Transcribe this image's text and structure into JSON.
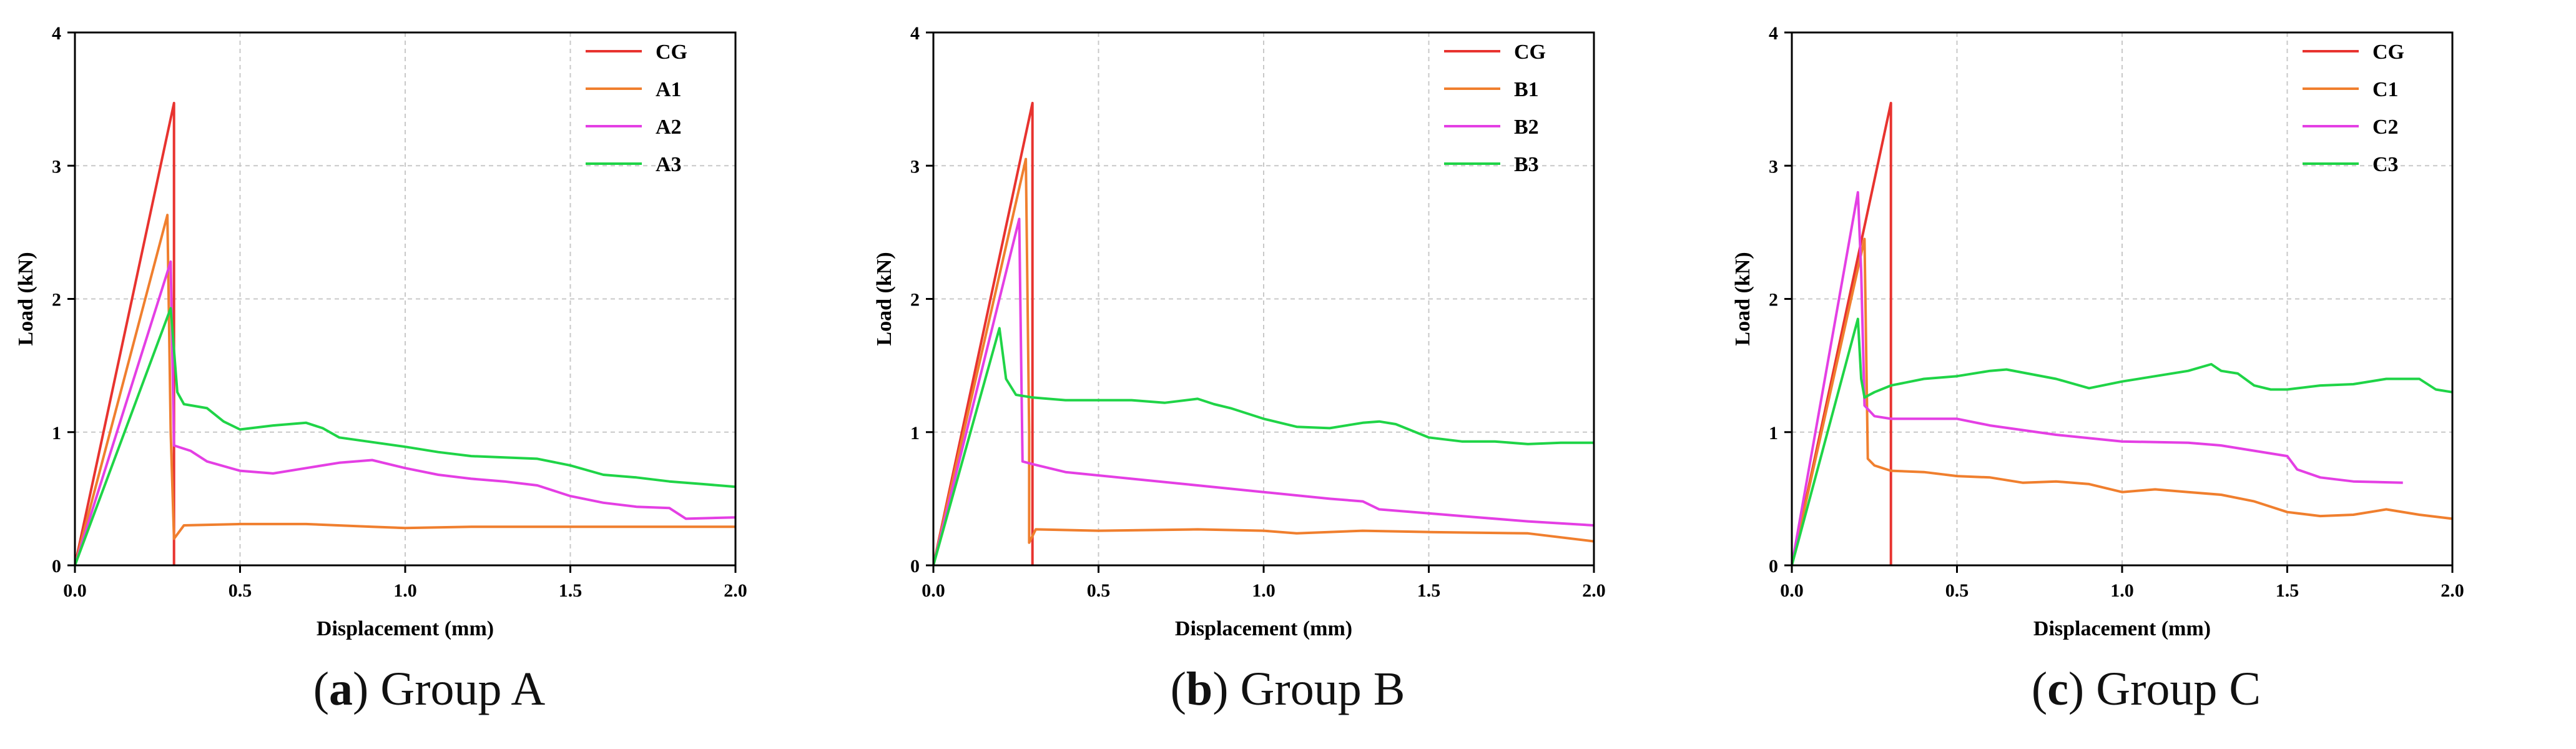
{
  "colors": {
    "CG": "#e8332f",
    "s1": "#f07f2e",
    "s2": "#e43fe4",
    "s3": "#1fd447",
    "axis": "#000000",
    "grid": "#c8c8c8"
  },
  "chart_data": [
    {
      "type": "line",
      "caption": {
        "letter": "a",
        "text": "Group A"
      },
      "xlabel": "Displacement (mm)",
      "ylabel": "Load (kN)",
      "xlim": [
        0,
        2.0
      ],
      "ylim": [
        0,
        4
      ],
      "xticks": [
        "0.0",
        "0.5",
        "1.0",
        "1.5",
        "2.0"
      ],
      "yticks": [
        "0",
        "1",
        "2",
        "3",
        "4"
      ],
      "grid": true,
      "legend": "top-right",
      "series": [
        {
          "name": "CG",
          "color_key": "CG",
          "points": [
            [
              0,
              0
            ],
            [
              0.3,
              3.47
            ],
            [
              0.3,
              0
            ]
          ]
        },
        {
          "name": "A1",
          "color_key": "s1",
          "points": [
            [
              0,
              0
            ],
            [
              0.28,
              2.63
            ],
            [
              0.29,
              1.0
            ],
            [
              0.3,
              0.2
            ],
            [
              0.33,
              0.3
            ],
            [
              0.5,
              0.31
            ],
            [
              0.7,
              0.31
            ],
            [
              0.9,
              0.29
            ],
            [
              1.0,
              0.28
            ],
            [
              1.2,
              0.29
            ],
            [
              1.5,
              0.29
            ],
            [
              1.8,
              0.29
            ],
            [
              2.0,
              0.29
            ]
          ]
        },
        {
          "name": "A2",
          "color_key": "s2",
          "points": [
            [
              0,
              0
            ],
            [
              0.29,
              2.28
            ],
            [
              0.3,
              0.9
            ],
            [
              0.35,
              0.86
            ],
            [
              0.4,
              0.78
            ],
            [
              0.5,
              0.71
            ],
            [
              0.6,
              0.69
            ],
            [
              0.7,
              0.73
            ],
            [
              0.8,
              0.77
            ],
            [
              0.9,
              0.79
            ],
            [
              1.0,
              0.73
            ],
            [
              1.1,
              0.68
            ],
            [
              1.2,
              0.65
            ],
            [
              1.3,
              0.63
            ],
            [
              1.4,
              0.6
            ],
            [
              1.5,
              0.52
            ],
            [
              1.6,
              0.47
            ],
            [
              1.7,
              0.44
            ],
            [
              1.8,
              0.43
            ],
            [
              1.85,
              0.35
            ],
            [
              2.0,
              0.36
            ]
          ]
        },
        {
          "name": "A3",
          "color_key": "s3",
          "points": [
            [
              0,
              0
            ],
            [
              0.29,
              1.93
            ],
            [
              0.31,
              1.3
            ],
            [
              0.33,
              1.21
            ],
            [
              0.4,
              1.18
            ],
            [
              0.45,
              1.08
            ],
            [
              0.5,
              1.02
            ],
            [
              0.6,
              1.05
            ],
            [
              0.7,
              1.07
            ],
            [
              0.75,
              1.03
            ],
            [
              0.8,
              0.96
            ],
            [
              1.0,
              0.89
            ],
            [
              1.1,
              0.85
            ],
            [
              1.2,
              0.82
            ],
            [
              1.3,
              0.81
            ],
            [
              1.4,
              0.8
            ],
            [
              1.5,
              0.75
            ],
            [
              1.6,
              0.68
            ],
            [
              1.7,
              0.66
            ],
            [
              1.8,
              0.63
            ],
            [
              1.9,
              0.61
            ],
            [
              2.0,
              0.59
            ]
          ]
        }
      ]
    },
    {
      "type": "line",
      "caption": {
        "letter": "b",
        "text": "Group B"
      },
      "xlabel": "Displacement (mm)",
      "ylabel": "Load (kN)",
      "xlim": [
        0,
        2.0
      ],
      "ylim": [
        0,
        4
      ],
      "xticks": [
        "0.0",
        "0.5",
        "1.0",
        "1.5",
        "2.0"
      ],
      "yticks": [
        "0",
        "1",
        "2",
        "3",
        "4"
      ],
      "grid": true,
      "legend": "top-right",
      "series": [
        {
          "name": "CG",
          "color_key": "CG",
          "points": [
            [
              0,
              0
            ],
            [
              0.3,
              3.47
            ],
            [
              0.3,
              0
            ]
          ]
        },
        {
          "name": "B1",
          "color_key": "s1",
          "points": [
            [
              0,
              0
            ],
            [
              0.28,
              3.05
            ],
            [
              0.29,
              1.0
            ],
            [
              0.29,
              0.17
            ],
            [
              0.31,
              0.27
            ],
            [
              0.5,
              0.26
            ],
            [
              0.8,
              0.27
            ],
            [
              1.0,
              0.26
            ],
            [
              1.1,
              0.24
            ],
            [
              1.3,
              0.26
            ],
            [
              1.5,
              0.25
            ],
            [
              1.8,
              0.24
            ],
            [
              2.0,
              0.18
            ]
          ]
        },
        {
          "name": "B2",
          "color_key": "s2",
          "points": [
            [
              0,
              0
            ],
            [
              0.26,
              2.6
            ],
            [
              0.27,
              0.78
            ],
            [
              0.3,
              0.76
            ],
            [
              0.4,
              0.7
            ],
            [
              0.6,
              0.65
            ],
            [
              0.8,
              0.6
            ],
            [
              1.0,
              0.55
            ],
            [
              1.2,
              0.5
            ],
            [
              1.3,
              0.48
            ],
            [
              1.35,
              0.42
            ],
            [
              1.5,
              0.39
            ],
            [
              1.6,
              0.37
            ],
            [
              1.8,
              0.33
            ],
            [
              2.0,
              0.3
            ]
          ]
        },
        {
          "name": "B3",
          "color_key": "s3",
          "points": [
            [
              0,
              0
            ],
            [
              0.2,
              1.78
            ],
            [
              0.22,
              1.4
            ],
            [
              0.25,
              1.28
            ],
            [
              0.3,
              1.26
            ],
            [
              0.4,
              1.24
            ],
            [
              0.6,
              1.24
            ],
            [
              0.7,
              1.22
            ],
            [
              0.8,
              1.25
            ],
            [
              0.85,
              1.21
            ],
            [
              0.9,
              1.18
            ],
            [
              1.0,
              1.1
            ],
            [
              1.1,
              1.04
            ],
            [
              1.2,
              1.03
            ],
            [
              1.3,
              1.07
            ],
            [
              1.35,
              1.08
            ],
            [
              1.4,
              1.06
            ],
            [
              1.5,
              0.96
            ],
            [
              1.6,
              0.93
            ],
            [
              1.7,
              0.93
            ],
            [
              1.8,
              0.91
            ],
            [
              1.9,
              0.92
            ],
            [
              2.0,
              0.92
            ]
          ]
        }
      ]
    },
    {
      "type": "line",
      "caption": {
        "letter": "c",
        "text": "Group C"
      },
      "xlabel": "Displacement (mm)",
      "ylabel": "Load (kN)",
      "xlim": [
        0,
        2.0
      ],
      "ylim": [
        0,
        4
      ],
      "xticks": [
        "0.0",
        "0.5",
        "1.0",
        "1.5",
        "2.0"
      ],
      "yticks": [
        "0",
        "1",
        "2",
        "3",
        "4"
      ],
      "grid": true,
      "legend": "top-right",
      "series": [
        {
          "name": "CG",
          "color_key": "CG",
          "points": [
            [
              0,
              0
            ],
            [
              0.3,
              3.47
            ],
            [
              0.3,
              0
            ]
          ]
        },
        {
          "name": "C1",
          "color_key": "s1",
          "points": [
            [
              0,
              0
            ],
            [
              0.22,
              2.45
            ],
            [
              0.23,
              0.8
            ],
            [
              0.25,
              0.75
            ],
            [
              0.3,
              0.71
            ],
            [
              0.4,
              0.7
            ],
            [
              0.5,
              0.67
            ],
            [
              0.6,
              0.66
            ],
            [
              0.7,
              0.62
            ],
            [
              0.8,
              0.63
            ],
            [
              0.9,
              0.61
            ],
            [
              1.0,
              0.55
            ],
            [
              1.1,
              0.57
            ],
            [
              1.2,
              0.55
            ],
            [
              1.3,
              0.53
            ],
            [
              1.4,
              0.48
            ],
            [
              1.5,
              0.4
            ],
            [
              1.6,
              0.37
            ],
            [
              1.7,
              0.38
            ],
            [
              1.8,
              0.42
            ],
            [
              1.9,
              0.38
            ],
            [
              2.0,
              0.35
            ]
          ]
        },
        {
          "name": "C2",
          "color_key": "s2",
          "points": [
            [
              0,
              0
            ],
            [
              0.2,
              2.8
            ],
            [
              0.21,
              2.2
            ],
            [
              0.22,
              1.2
            ],
            [
              0.25,
              1.12
            ],
            [
              0.3,
              1.1
            ],
            [
              0.5,
              1.1
            ],
            [
              0.6,
              1.05
            ],
            [
              0.8,
              0.98
            ],
            [
              1.0,
              0.93
            ],
            [
              1.2,
              0.92
            ],
            [
              1.3,
              0.9
            ],
            [
              1.4,
              0.86
            ],
            [
              1.5,
              0.82
            ],
            [
              1.53,
              0.72
            ],
            [
              1.6,
              0.66
            ],
            [
              1.7,
              0.63
            ],
            [
              1.85,
              0.62
            ]
          ]
        },
        {
          "name": "C3",
          "color_key": "s3",
          "points": [
            [
              0,
              0
            ],
            [
              0.2,
              1.85
            ],
            [
              0.21,
              1.4
            ],
            [
              0.22,
              1.26
            ],
            [
              0.25,
              1.3
            ],
            [
              0.3,
              1.35
            ],
            [
              0.4,
              1.4
            ],
            [
              0.5,
              1.42
            ],
            [
              0.6,
              1.46
            ],
            [
              0.65,
              1.47
            ],
            [
              0.8,
              1.4
            ],
            [
              0.9,
              1.33
            ],
            [
              1.0,
              1.38
            ],
            [
              1.1,
              1.42
            ],
            [
              1.2,
              1.46
            ],
            [
              1.27,
              1.51
            ],
            [
              1.3,
              1.46
            ],
            [
              1.35,
              1.44
            ],
            [
              1.4,
              1.35
            ],
            [
              1.45,
              1.32
            ],
            [
              1.5,
              1.32
            ],
            [
              1.6,
              1.35
            ],
            [
              1.7,
              1.36
            ],
            [
              1.8,
              1.4
            ],
            [
              1.9,
              1.4
            ],
            [
              1.95,
              1.32
            ],
            [
              2.0,
              1.3
            ]
          ]
        }
      ]
    }
  ]
}
